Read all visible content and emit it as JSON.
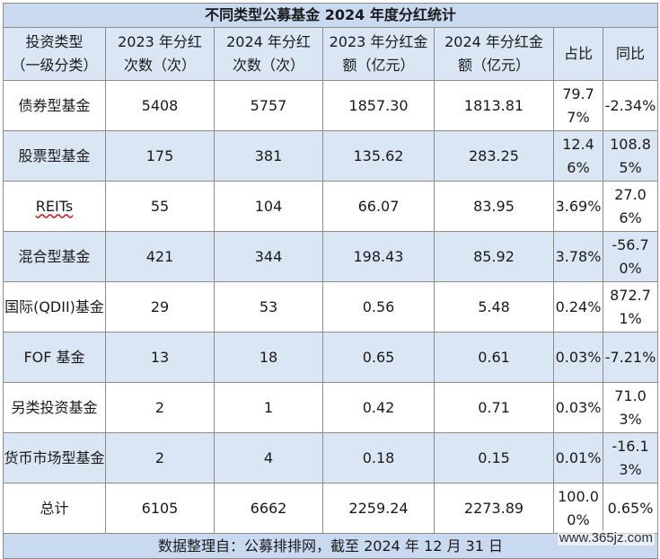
{
  "title": "不同类型公募基金 2024 年度分红统计",
  "headers": [
    "投资类型\n（一级分类）",
    "2023 年分红\n次数（次）",
    "2024 年分红\n次数（次）",
    "2023 年分红金\n额（亿元）",
    "2024 年分红金\n额（亿元）",
    "占比",
    "同比"
  ],
  "rows": [
    {
      "type": "债券型基金",
      "c2023": "5408",
      "c2024": "5757",
      "a2023": "1857.30",
      "a2024": "1813.81",
      "share": "79.77%",
      "yoy": "-2.34%"
    },
    {
      "type": "股票型基金",
      "c2023": "175",
      "c2024": "381",
      "a2023": "135.62",
      "a2024": "283.25",
      "share": "12.46%",
      "yoy": "108.85%"
    },
    {
      "type": "REITs",
      "c2023": "55",
      "c2024": "104",
      "a2023": "66.07",
      "a2024": "83.95",
      "share": "3.69%",
      "yoy": "27.06%"
    },
    {
      "type": "混合型基金",
      "c2023": "421",
      "c2024": "344",
      "a2023": "198.43",
      "a2024": "85.92",
      "share": "3.78%",
      "yoy": "-56.70%"
    },
    {
      "type": "国际(QDII)基金",
      "c2023": "29",
      "c2024": "53",
      "a2023": "0.56",
      "a2024": "5.48",
      "share": "0.24%",
      "yoy": "872.71%"
    },
    {
      "type": "FOF 基金",
      "c2023": "13",
      "c2024": "18",
      "a2023": "0.65",
      "a2024": "0.61",
      "share": "0.03%",
      "yoy": "-7.21%"
    },
    {
      "type": "另类投资基金",
      "c2023": "2",
      "c2024": "1",
      "a2023": "0.42",
      "a2024": "0.71",
      "share": "0.03%",
      "yoy": "71.03%"
    },
    {
      "type": "货币市场型基金",
      "c2023": "2",
      "c2024": "4",
      "a2023": "0.18",
      "a2024": "0.15",
      "share": "0.01%",
      "yoy": "-16.13%"
    }
  ],
  "total": {
    "type": "总计",
    "c2023": "6105",
    "c2024": "6662",
    "a2023": "2259.24",
    "a2024": "2273.89",
    "share": "100.00%",
    "yoy": "0.65%"
  },
  "footer": "数据整理自：公募排排网，截至 2024 年 12 月 31 日",
  "watermark": "www.365jz.com",
  "colors": {
    "title_bg": "#c9daf0",
    "stripe_bg": "#dbe6f4",
    "border": "#8c8c8c"
  }
}
